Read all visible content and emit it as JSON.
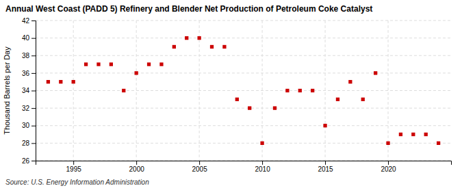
{
  "chart_data": {
    "type": "scatter",
    "title": "Annual West Coast (PADD 5) Refinery and Blender Net Production of Petroleum Coke Catalyst",
    "y_label": "Thousand Barrels per Day",
    "source": "Source: U.S. Energy Information Administration",
    "x": [
      1993,
      1994,
      1995,
      1996,
      1997,
      1998,
      1999,
      2000,
      2001,
      2002,
      2003,
      2004,
      2005,
      2006,
      2007,
      2008,
      2009,
      2010,
      2011,
      2012,
      2013,
      2014,
      2015,
      2016,
      2017,
      2018,
      2019,
      2020,
      2021,
      2022,
      2023,
      2024
    ],
    "values": [
      35.0,
      35.0,
      35.0,
      37.0,
      37.0,
      37.0,
      34.0,
      36.0,
      37.0,
      37.0,
      39.0,
      40.0,
      40.0,
      39.0,
      39.0,
      33.0,
      32.0,
      28.0,
      32.0,
      34.0,
      34.0,
      34.0,
      30.0,
      33.0,
      35.0,
      33.0,
      36.0,
      28.0,
      29.0,
      29.0,
      29.0,
      28.0
    ],
    "color": "#cc0000",
    "marker": "square",
    "xlim": [
      1992.0,
      2025.0
    ],
    "xticks": [
      1995,
      2000,
      2005,
      2010,
      2015,
      2020
    ],
    "ylim": [
      26,
      42
    ],
    "yticks": [
      26,
      28,
      30,
      32,
      34,
      36,
      38,
      40,
      42
    ],
    "grid": true
  }
}
